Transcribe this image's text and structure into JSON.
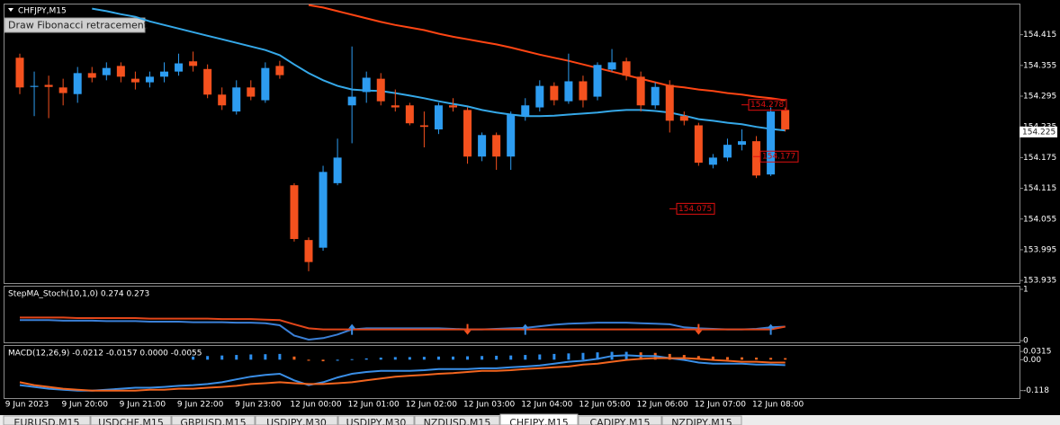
{
  "window": {
    "symbol_label": "CHFJPY,M15",
    "tooltip": "Draw Fibonacci retracement"
  },
  "chart_data": [
    {
      "type": "candlestick",
      "categories": [
        "9 Jun 2023",
        null,
        null,
        null,
        "9 Jun 20:00",
        null,
        null,
        null,
        "9 Jun 21:00",
        null,
        null,
        null,
        "9 Jun 22:00",
        null,
        null,
        null,
        "9 Jun 23:00",
        null,
        null,
        null,
        "12 Jun 00:00",
        null,
        null,
        null,
        "12 Jun 01:00",
        null,
        null,
        null,
        "12 Jun 02:00",
        null,
        null,
        null,
        "12 Jun 03:00",
        null,
        null,
        null,
        "12 Jun 04:00",
        null,
        null,
        null,
        "12 Jun 05:00",
        null,
        null,
        null,
        "12 Jun 06:00",
        null,
        null,
        null,
        "12 Jun 07:00",
        null,
        null,
        null,
        "12 Jun 08:00",
        null
      ],
      "open": [
        154.37,
        154.313,
        154.317,
        154.312,
        154.299,
        154.34,
        154.336,
        154.354,
        154.329,
        154.322,
        154.333,
        154.343,
        154.363,
        154.348,
        154.298,
        154.265,
        154.312,
        154.287,
        154.354,
        154.121,
        154.014,
        153.999,
        154.125,
        154.277,
        154.303,
        154.329,
        154.277,
        154.277,
        154.238,
        154.23,
        154.277,
        154.268,
        154.177,
        154.219,
        154.177,
        154.256,
        154.273,
        154.315,
        154.285,
        154.324,
        154.294,
        154.347,
        154.363,
        154.333,
        154.277,
        154.317,
        154.256,
        154.238,
        154.161,
        154.175,
        154.2,
        154.207,
        154.142,
        154.268
      ],
      "high": [
        154.378,
        154.343,
        154.335,
        154.329,
        154.352,
        154.352,
        154.361,
        154.361,
        154.343,
        154.343,
        154.361,
        154.378,
        154.382,
        154.357,
        154.312,
        154.326,
        154.326,
        154.361,
        154.364,
        154.125,
        154.019,
        154.159,
        154.212,
        154.392,
        154.343,
        154.34,
        154.308,
        154.282,
        154.265,
        154.282,
        154.291,
        154.273,
        154.224,
        154.224,
        154.265,
        154.291,
        154.326,
        154.322,
        154.378,
        154.335,
        154.361,
        154.387,
        154.37,
        154.343,
        154.322,
        154.326,
        154.265,
        154.243,
        154.182,
        154.212,
        154.23,
        154.217,
        154.273,
        154.273
      ],
      "low": [
        154.299,
        154.256,
        154.252,
        154.277,
        154.282,
        154.322,
        154.326,
        154.322,
        154.308,
        154.312,
        154.322,
        154.335,
        154.343,
        154.291,
        154.268,
        154.259,
        154.287,
        154.282,
        154.329,
        154.011,
        153.953,
        153.993,
        154.121,
        154.203,
        154.282,
        154.277,
        154.265,
        154.238,
        154.195,
        154.221,
        154.265,
        154.163,
        154.168,
        154.151,
        154.151,
        154.247,
        154.265,
        154.277,
        154.28,
        154.273,
        154.287,
        154.343,
        154.326,
        154.265,
        154.27,
        154.224,
        154.238,
        154.159,
        154.154,
        154.168,
        154.189,
        154.135,
        154.139,
        154.226
      ],
      "close": [
        154.312,
        154.315,
        154.313,
        154.301,
        154.34,
        154.331,
        154.35,
        154.333,
        154.322,
        154.333,
        154.343,
        154.359,
        154.354,
        154.298,
        154.277,
        154.312,
        154.294,
        154.35,
        154.336,
        154.016,
        153.971,
        154.147,
        154.175,
        154.294,
        154.331,
        154.285,
        154.273,
        154.242,
        154.235,
        154.277,
        154.273,
        154.177,
        154.219,
        154.177,
        154.259,
        154.277,
        154.315,
        154.287,
        154.324,
        154.287,
        154.356,
        154.361,
        154.335,
        154.277,
        154.313,
        154.247,
        154.247,
        154.165,
        154.175,
        154.2,
        154.207,
        154.14,
        154.265,
        154.23
      ],
      "up_color": "#2d9cf0",
      "down_color": "#f4511e",
      "series": [
        {
          "color": "#35a8e8",
          "values": [
            null,
            null,
            null,
            null,
            null,
            154.466,
            154.461,
            154.455,
            154.45,
            154.441,
            154.434,
            154.427,
            154.42,
            154.413,
            154.406,
            154.399,
            154.392,
            154.385,
            154.375,
            154.357,
            154.34,
            154.326,
            154.315,
            154.308,
            154.306,
            154.305,
            154.301,
            154.296,
            154.291,
            154.285,
            154.28,
            154.275,
            154.268,
            154.263,
            154.259,
            154.256,
            154.256,
            154.257,
            154.259,
            154.261,
            154.263,
            154.266,
            154.268,
            154.268,
            154.266,
            154.263,
            154.257,
            154.25,
            154.247,
            154.243,
            154.24,
            154.235,
            154.231,
            154.228
          ]
        },
        {
          "color": "#ff4513",
          "values": [
            null,
            null,
            null,
            null,
            null,
            null,
            null,
            null,
            null,
            null,
            null,
            null,
            null,
            null,
            null,
            null,
            null,
            null,
            null,
            null,
            154.473,
            154.468,
            154.461,
            154.454,
            154.447,
            154.44,
            154.434,
            154.429,
            154.424,
            154.417,
            154.411,
            154.406,
            154.401,
            154.396,
            154.39,
            154.383,
            154.376,
            154.37,
            154.364,
            154.357,
            154.35,
            154.343,
            154.336,
            154.329,
            154.322,
            154.315,
            154.312,
            154.308,
            154.305,
            154.301,
            154.298,
            154.294,
            154.291,
            154.287
          ]
        }
      ],
      "price_labels": [
        154.278,
        154.177,
        154.075
      ],
      "current_price": 154.225,
      "ylim": [
        153.93,
        154.474
      ],
      "yticks": [
        154.415,
        154.355,
        154.295,
        154.235,
        154.175,
        154.115,
        154.055,
        153.995,
        153.935
      ]
    },
    {
      "type": "line",
      "title": "StepMA_Stoch(10,1,0) 0.274 0.273",
      "series": [
        {
          "color": "#3a7fd6",
          "values": [
            0.4,
            0.4,
            0.4,
            0.39,
            0.39,
            0.39,
            0.38,
            0.38,
            0.38,
            0.37,
            0.37,
            0.37,
            0.36,
            0.36,
            0.36,
            0.35,
            0.35,
            0.34,
            0.3,
            0.1,
            0.02,
            0.05,
            0.12,
            0.22,
            0.24,
            0.24,
            0.24,
            0.24,
            0.24,
            0.24,
            0.23,
            0.22,
            0.22,
            0.23,
            0.24,
            0.25,
            0.28,
            0.31,
            0.33,
            0.34,
            0.35,
            0.35,
            0.35,
            0.34,
            0.33,
            0.32,
            0.26,
            0.24,
            0.23,
            0.22,
            0.22,
            0.23,
            0.26,
            0.274
          ]
        },
        {
          "color": "#e2461a",
          "values": [
            0.45,
            0.45,
            0.45,
            0.45,
            0.44,
            0.44,
            0.44,
            0.44,
            0.44,
            0.43,
            0.43,
            0.43,
            0.43,
            0.43,
            0.42,
            0.42,
            0.42,
            0.41,
            0.4,
            0.32,
            0.24,
            0.22,
            0.22,
            0.22,
            0.22,
            0.22,
            0.22,
            0.22,
            0.22,
            0.22,
            0.22,
            0.22,
            0.22,
            0.22,
            0.22,
            0.22,
            0.22,
            0.22,
            0.22,
            0.22,
            0.22,
            0.22,
            0.22,
            0.22,
            0.22,
            0.22,
            0.22,
            0.22,
            0.22,
            0.22,
            0.22,
            0.22,
            0.22,
            0.273
          ]
        }
      ],
      "arrows": {
        "up": [
          23,
          35,
          52
        ],
        "down": [
          31,
          47
        ],
        "up_color": "#3a8ee6",
        "down_color": "#f4511e"
      },
      "ylim": [
        -0.05,
        1.07
      ],
      "yticks": [
        0,
        1
      ]
    },
    {
      "type": "line",
      "title": "MACD(12,26,9) -0.0212 -0.0157 0.0000 -0.0055",
      "series": [
        {
          "color": "#3a8ee6",
          "values": [
            -0.097,
            -0.104,
            -0.111,
            -0.115,
            -0.118,
            -0.118,
            -0.115,
            -0.111,
            -0.107,
            -0.107,
            -0.104,
            -0.1,
            -0.097,
            -0.093,
            -0.086,
            -0.075,
            -0.065,
            -0.058,
            -0.054,
            -0.079,
            -0.097,
            -0.086,
            -0.068,
            -0.054,
            -0.047,
            -0.043,
            -0.043,
            -0.043,
            -0.04,
            -0.036,
            -0.036,
            -0.036,
            -0.033,
            -0.033,
            -0.029,
            -0.026,
            -0.022,
            -0.015,
            -0.008,
            -0.004,
            0.003,
            0.014,
            0.017,
            0.014,
            0.014,
            0.006,
            -0.001,
            -0.011,
            -0.015,
            -0.015,
            -0.015,
            -0.019,
            -0.019,
            -0.021
          ]
        },
        {
          "color": "#f2651f",
          "values": [
            -0.086,
            -0.097,
            -0.104,
            -0.111,
            -0.115,
            -0.118,
            -0.118,
            -0.118,
            -0.118,
            -0.115,
            -0.115,
            -0.111,
            -0.111,
            -0.107,
            -0.104,
            -0.1,
            -0.093,
            -0.09,
            -0.086,
            -0.09,
            -0.093,
            -0.093,
            -0.09,
            -0.086,
            -0.079,
            -0.072,
            -0.065,
            -0.061,
            -0.058,
            -0.054,
            -0.051,
            -0.047,
            -0.043,
            -0.043,
            -0.04,
            -0.036,
            -0.033,
            -0.029,
            -0.026,
            -0.019,
            -0.015,
            -0.008,
            -0.001,
            0.003,
            0.006,
            0.006,
            0.006,
            0.003,
            -0.001,
            -0.004,
            -0.008,
            -0.008,
            -0.011,
            -0.011
          ]
        }
      ],
      "histogram": {
        "up_color": "#2d8ff0",
        "down_color": "#f2651f",
        "values": [
          null,
          null,
          null,
          null,
          null,
          null,
          null,
          null,
          null,
          null,
          null,
          null,
          0.012,
          0.014,
          0.016,
          0.018,
          0.02,
          0.021,
          0.022,
          0.012,
          -0.004,
          -0.006,
          -0.004,
          0.002,
          0.005,
          0.008,
          0.01,
          0.01,
          0.011,
          0.012,
          0.012,
          0.013,
          0.014,
          0.015,
          0.016,
          0.018,
          0.02,
          0.022,
          0.024,
          0.026,
          0.028,
          0.03,
          0.03,
          0.028,
          0.026,
          0.022,
          0.018,
          0.014,
          0.012,
          0.01,
          0.009,
          0.008,
          0.007,
          0.006
        ]
      },
      "ylim": [
        -0.15,
        0.056
      ],
      "yticks": [
        0.0315,
        {
          "value": 0,
          "label": "0.00"
        },
        -0.118
      ]
    }
  ],
  "tabs": [
    "EURUSD,M15",
    "USDCHF,M15",
    "GBPUSD,M15",
    "USDJPY,M30",
    "USDJPY,M30",
    "NZDUSD,M15",
    "CHFJPY,M15",
    "CADJPY,M15",
    "NZDJPY,M15"
  ],
  "active_tab": 6
}
